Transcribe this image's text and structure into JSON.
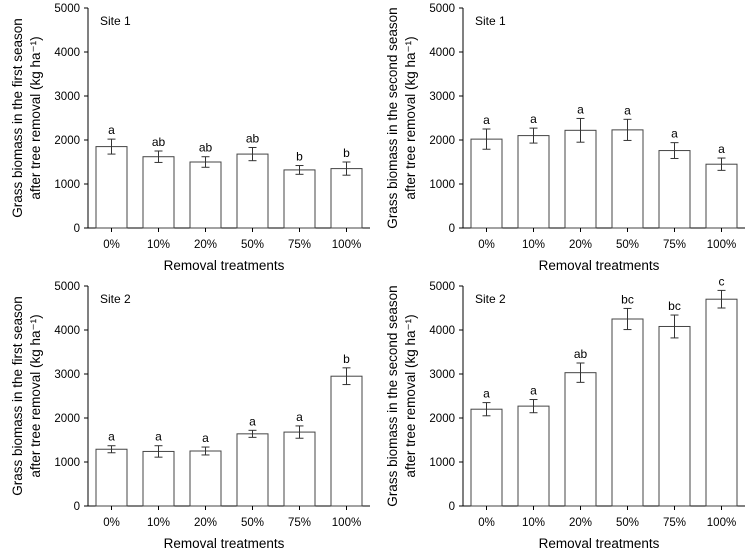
{
  "chart_data": [
    {
      "type": "bar",
      "site_label": "Site 1",
      "ylabel_line1": "Grass biomass in the first season",
      "ylabel_line2": "after tree removal (kg ha⁻¹)",
      "xlabel": "Removal treatments",
      "categories": [
        "0%",
        "10%",
        "20%",
        "50%",
        "75%",
        "100%"
      ],
      "values": [
        1850,
        1620,
        1500,
        1680,
        1320,
        1350
      ],
      "errors": [
        170,
        130,
        120,
        150,
        100,
        150
      ],
      "letters": [
        "a",
        "ab",
        "ab",
        "ab",
        "b",
        "b"
      ],
      "ylim": [
        0,
        5000
      ],
      "yticks": [
        "0",
        "1000",
        "2000",
        "3000",
        "4000",
        "5000"
      ]
    },
    {
      "type": "bar",
      "site_label": "Site 1",
      "ylabel_line1": "Grass biomass in the second season",
      "ylabel_line2": "after tree removal (kg ha⁻¹)",
      "xlabel": "Removal treatments",
      "categories": [
        "0%",
        "10%",
        "20%",
        "50%",
        "75%",
        "100%"
      ],
      "values": [
        2020,
        2100,
        2220,
        2230,
        1760,
        1450
      ],
      "errors": [
        230,
        170,
        270,
        240,
        180,
        140
      ],
      "letters": [
        "a",
        "a",
        "a",
        "a",
        "a",
        "a"
      ],
      "ylim": [
        0,
        5000
      ],
      "yticks": [
        "0",
        "1000",
        "2000",
        "3000",
        "4000",
        "5000"
      ]
    },
    {
      "type": "bar",
      "site_label": "Site 2",
      "ylabel_line1": "Grass biomass in the first season",
      "ylabel_line2": "after tree removal (kg ha⁻¹)",
      "xlabel": "Removal treatments",
      "categories": [
        "0%",
        "10%",
        "20%",
        "50%",
        "75%",
        "100%"
      ],
      "values": [
        1290,
        1240,
        1250,
        1640,
        1680,
        2950
      ],
      "errors": [
        80,
        130,
        90,
        80,
        140,
        190
      ],
      "letters": [
        "a",
        "a",
        "a",
        "a",
        "a",
        "b"
      ],
      "ylim": [
        0,
        5000
      ],
      "yticks": [
        "0",
        "1000",
        "2000",
        "3000",
        "4000",
        "5000"
      ]
    },
    {
      "type": "bar",
      "site_label": "Site 2",
      "ylabel_line1": "Grass biomass in the second season",
      "ylabel_line2": "after tree removal (kg ha⁻¹)",
      "xlabel": "Removal treatments",
      "categories": [
        "0%",
        "10%",
        "20%",
        "50%",
        "75%",
        "100%"
      ],
      "values": [
        2200,
        2270,
        3030,
        4250,
        4080,
        4700
      ],
      "errors": [
        150,
        150,
        220,
        240,
        260,
        200
      ],
      "letters": [
        "a",
        "a",
        "ab",
        "bc",
        "bc",
        "c"
      ],
      "ylim": [
        0,
        5000
      ],
      "yticks": [
        "0",
        "1000",
        "2000",
        "3000",
        "4000",
        "5000"
      ]
    }
  ]
}
